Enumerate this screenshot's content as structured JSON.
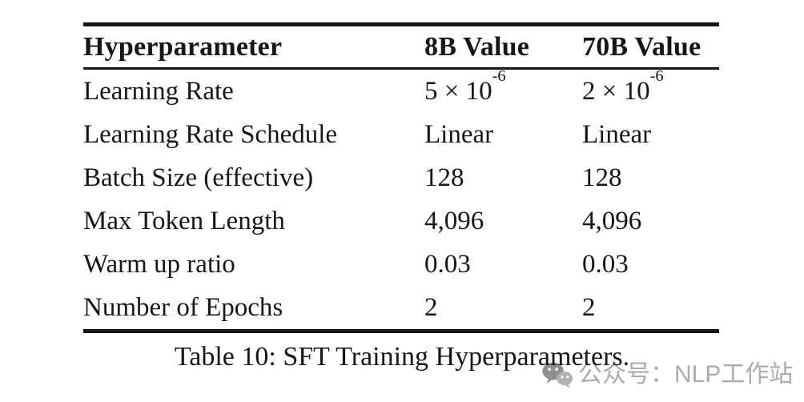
{
  "table": {
    "columns": [
      "Hyperparameter",
      "8B Value",
      "70B Value"
    ],
    "rows": [
      {
        "name": "Learning Rate",
        "v8b": "5 × 10^-6",
        "v70b": "2 × 10^-6"
      },
      {
        "name": "Learning Rate Schedule",
        "v8b": "Linear",
        "v70b": "Linear"
      },
      {
        "name": "Batch Size (effective)",
        "v8b": "128",
        "v70b": "128"
      },
      {
        "name": "Max Token Length",
        "v8b": "4,096",
        "v70b": "4,096"
      },
      {
        "name": "Warm up ratio",
        "v8b": "0.03",
        "v70b": "0.03"
      },
      {
        "name": "Number of Epochs",
        "v8b": "2",
        "v70b": "2"
      }
    ]
  },
  "caption": "Table 10: SFT Training Hyperparameters.",
  "watermark": {
    "icon": "wechat-icon",
    "text": "公众号：NLP工作站"
  },
  "colors": {
    "background": "#ffffff",
    "text": "#161616",
    "rule": "#141414",
    "watermark_gray": "#ababab",
    "watermark_icon_dark": "#8f8f8f",
    "watermark_icon_light": "#b3b3b3"
  }
}
